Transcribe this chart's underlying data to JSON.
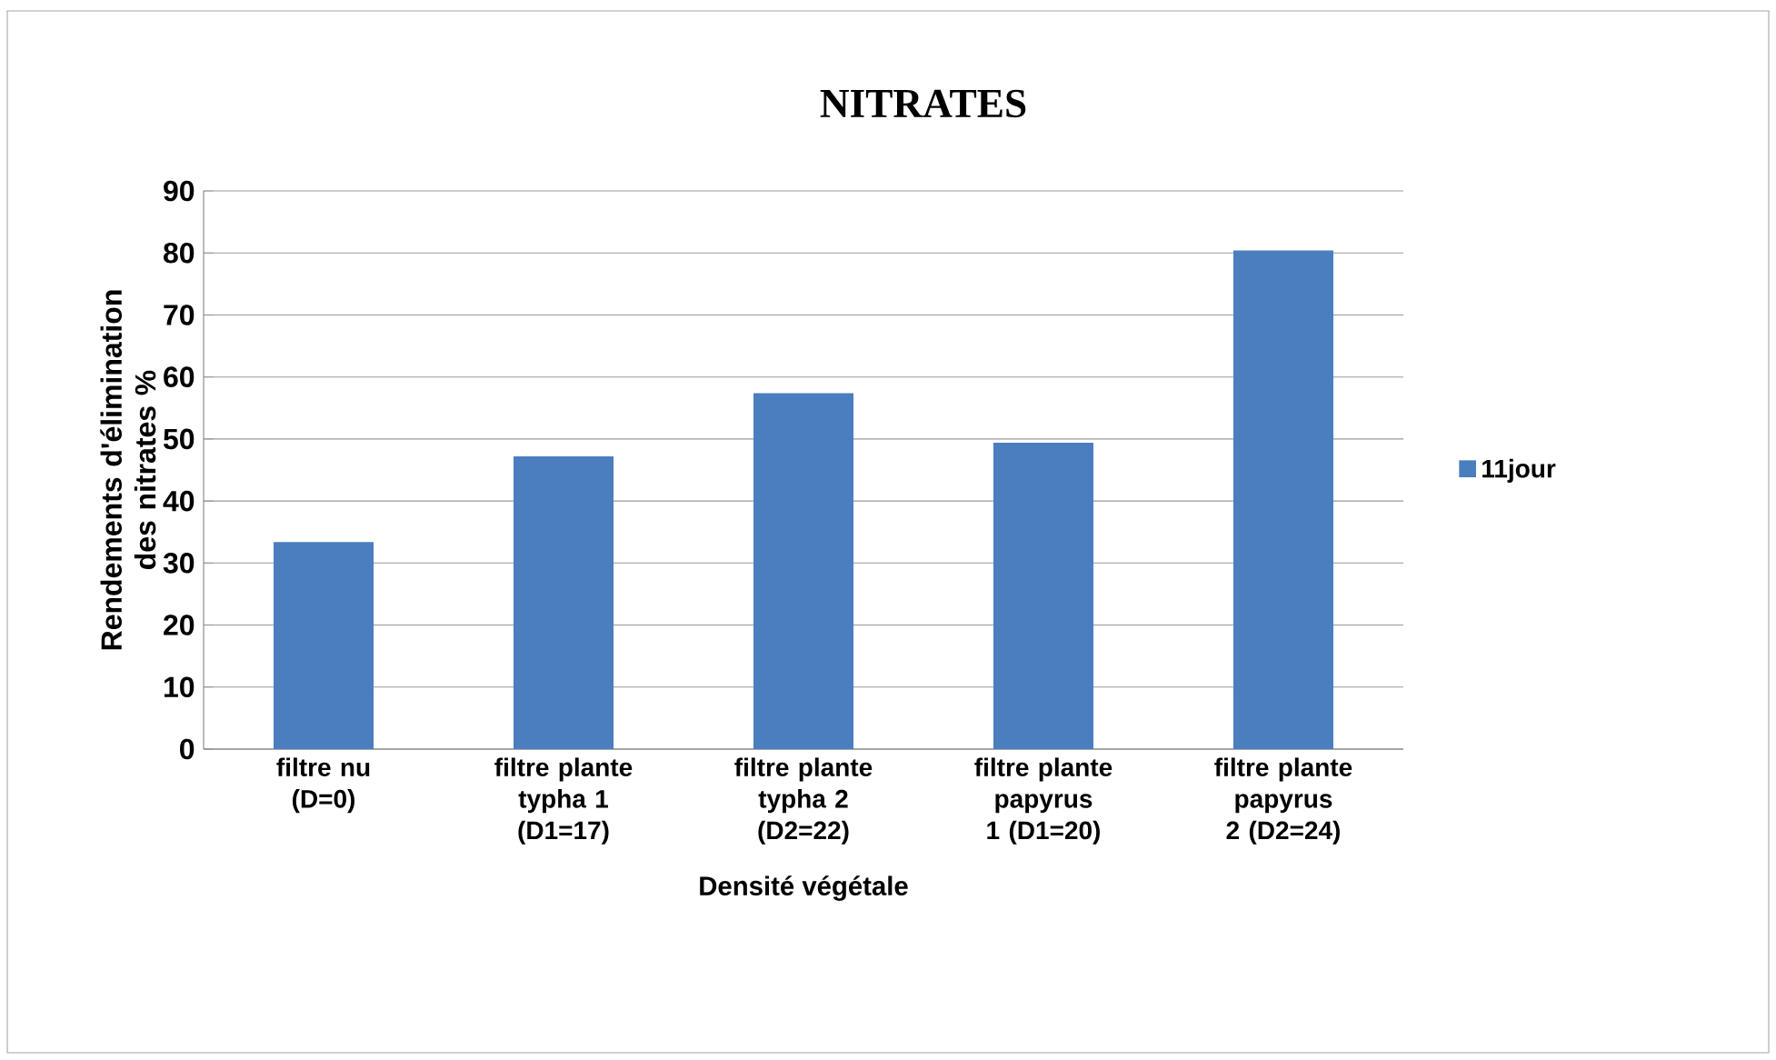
{
  "chart_data": {
    "type": "bar",
    "title": "NITRATES",
    "xlabel": "Densité végétale",
    "ylabel": "Rendements d'élimination des nitrates %",
    "categories": [
      "filtre nu (D=0)",
      "filtre plante typha 1 (D1=17)",
      "filtre plante typha 2 (D2=22)",
      "filtre plante papyrus 1 (D1=20)",
      "filtre plante papyrus 2 (D2=24)"
    ],
    "series": [
      {
        "name": "11jour",
        "color": "#4a7ebf",
        "values": [
          33.4,
          47.2,
          57.4,
          49.4,
          80.4
        ]
      }
    ],
    "ylim": [
      0,
      90
    ],
    "yticks": [
      0,
      10,
      20,
      30,
      40,
      50,
      60,
      70,
      80,
      90
    ],
    "grid": "y",
    "legend": "right"
  }
}
